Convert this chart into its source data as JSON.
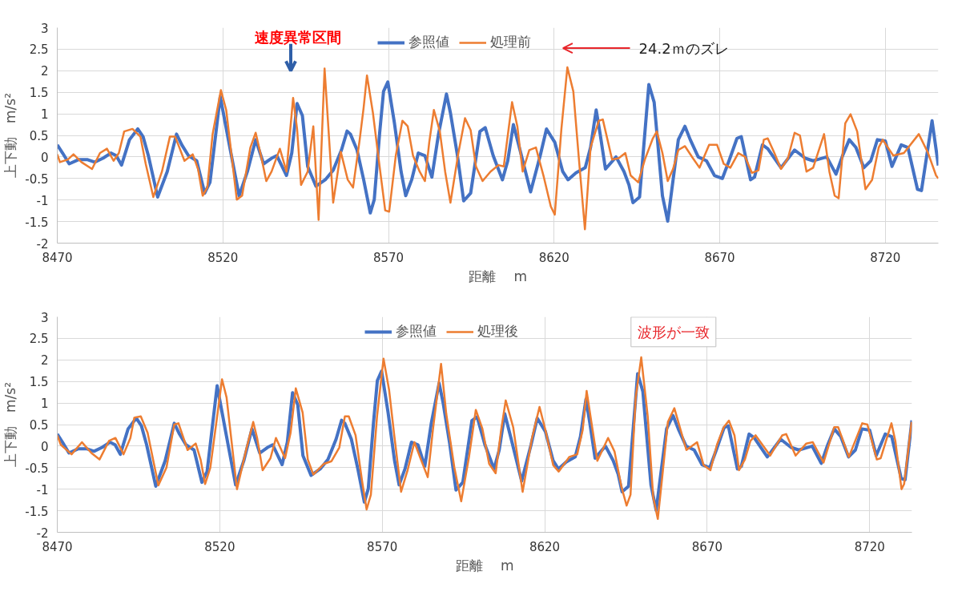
{
  "chart_data": [
    {
      "type": "line",
      "xlabel": "距離　 m",
      "ylabel": "上下動　m/s²",
      "legend": "top",
      "grid": true,
      "line_style": "solid",
      "xlim": [
        8470,
        8736
      ],
      "ylim": [
        -2,
        3
      ],
      "xticks": [
        8470,
        8520,
        8570,
        8620,
        8670,
        8720
      ],
      "yticks": [
        -2,
        -1.5,
        -1,
        -0.5,
        0,
        0.5,
        1,
        1.5,
        2,
        2.5,
        3
      ],
      "annotations": [
        "速度異常区間",
        "24.2ｍのズレ"
      ],
      "series": [
        {
          "name": "参照値",
          "color": "#4472c4",
          "x": [
            8470,
            8471.6,
            8473.6,
            8476.5,
            8479,
            8481.3,
            8483.8,
            8486.2,
            8487.8,
            8489.4,
            8491.8,
            8494.3,
            8495.9,
            8497.5,
            8500.3,
            8503.2,
            8506,
            8507.6,
            8509.6,
            8512.1,
            8514.5,
            8516.1,
            8519.2,
            8521.8,
            8524.9,
            8527.4,
            8529.9,
            8532.3,
            8534.7,
            8536.3,
            8539.2,
            8540.8,
            8542.4,
            8544,
            8545.6,
            8548.1,
            8550.9,
            8553.3,
            8555.8,
            8557.5,
            8558.5,
            8560.5,
            8562.5,
            8564.5,
            8565.7,
            8567.3,
            8568.5,
            8569.8,
            8571.8,
            8573.8,
            8575.2,
            8577,
            8579,
            8581,
            8583.1,
            8585.1,
            8587.5,
            8588.7,
            8590.7,
            8592.7,
            8594.8,
            8597.6,
            8599.2,
            8601.6,
            8604.4,
            8606,
            8607.7,
            8609.7,
            8612.9,
            8615.8,
            8617.7,
            8620.2,
            8622.6,
            8624.2,
            8626.6,
            8629.4,
            8631,
            8632.7,
            8633.9,
            8635.5,
            8638.7,
            8641.1,
            8642.6,
            8643.8,
            8645.8,
            8648.6,
            8650.2,
            8652.7,
            8654.3,
            8655.5,
            8657.5,
            8659.5,
            8661.1,
            8663.5,
            8666,
            8668.4,
            8670.8,
            8672.8,
            8675.2,
            8676.5,
            8679.3,
            8680.5,
            8682.9,
            8684.5,
            8688.5,
            8692.6,
            8695.8,
            8698.2,
            8702.3,
            8705.1,
            8707.1,
            8709.1,
            8711.1,
            8713.5,
            8715.6,
            8717.6,
            8720,
            8722,
            8724.8,
            8726.8,
            8729.7,
            8730.9,
            8734.1,
            8736
          ],
          "values": [
            0.28,
            0.09,
            -0.16,
            -0.06,
            -0.06,
            -0.12,
            -0.03,
            0.09,
            0.03,
            -0.19,
            0.4,
            0.65,
            0.47,
            0.03,
            -0.93,
            -0.34,
            0.53,
            0.28,
            0.03,
            -0.09,
            -0.84,
            -0.59,
            1.4,
            0.34,
            -0.9,
            -0.34,
            0.4,
            -0.16,
            -0.03,
            0.03,
            -0.43,
            0.09,
            1.24,
            0.96,
            -0.22,
            -0.68,
            -0.53,
            -0.31,
            0.16,
            0.6,
            0.53,
            0.16,
            -0.53,
            -1.3,
            -0.99,
            0.53,
            1.52,
            1.74,
            0.78,
            -0.34,
            -0.9,
            -0.53,
            0.09,
            0.03,
            -0.47,
            0.53,
            1.46,
            1.02,
            0.09,
            -1.02,
            -0.84,
            0.59,
            0.68,
            0.03,
            -0.53,
            -0.09,
            0.75,
            0.16,
            -0.81,
            0.03,
            0.65,
            0.34,
            -0.34,
            -0.53,
            -0.37,
            -0.25,
            0.22,
            1.09,
            0.53,
            -0.28,
            0,
            -0.34,
            -0.65,
            -1.06,
            -0.93,
            1.68,
            1.27,
            -0.9,
            -1.49,
            -0.78,
            0.4,
            0.71,
            0.4,
            0,
            -0.09,
            -0.43,
            -0.5,
            -0.09,
            0.43,
            0.47,
            -0.53,
            -0.47,
            0.28,
            0.19,
            -0.25,
            0.16,
            -0.03,
            -0.09,
            0,
            -0.4,
            0.03,
            0.4,
            0.22,
            -0.25,
            -0.09,
            0.4,
            0.37,
            -0.22,
            0.28,
            0.22,
            -0.75,
            -0.78,
            0.84,
            -0.2
          ]
        },
        {
          "name": "処理前",
          "color": "#ed7d31",
          "x": [
            8470,
            8470.8,
            8473.2,
            8474.9,
            8477.3,
            8480.5,
            8482.9,
            8485,
            8487,
            8488.6,
            8490.2,
            8492.7,
            8495.1,
            8496.7,
            8499,
            8501.6,
            8504,
            8505.6,
            8508.4,
            8510.9,
            8512.5,
            8513.9,
            8515.3,
            8516.9,
            8519.4,
            8521,
            8524.2,
            8525.8,
            8528.3,
            8529.9,
            8531.5,
            8533.1,
            8534.7,
            8537.2,
            8539.2,
            8541.2,
            8542.4,
            8543.6,
            8545.6,
            8547.3,
            8548.9,
            8550.7,
            8553.3,
            8555.6,
            8557.7,
            8559.3,
            8561.3,
            8562.5,
            8563.5,
            8565.3,
            8566.9,
            8569,
            8570.2,
            8572.2,
            8574.2,
            8575.8,
            8577.4,
            8579.4,
            8581,
            8582.3,
            8583.7,
            8585.5,
            8587.1,
            8588.7,
            8591.1,
            8593.1,
            8594.8,
            8596.4,
            8598.4,
            8600.8,
            8603.2,
            8604.8,
            8607.3,
            8608.9,
            8610.5,
            8612.5,
            8614.5,
            8616.9,
            8619,
            8620.2,
            8622.2,
            8624,
            8625.8,
            8627.4,
            8629.3,
            8631,
            8633.5,
            8634.7,
            8637.5,
            8639.5,
            8641.5,
            8643.1,
            8645.4,
            8647.4,
            8649.8,
            8651,
            8652.7,
            8654.3,
            8655.9,
            8657.5,
            8659.5,
            8661.9,
            8663.9,
            8666.8,
            8669.2,
            8671.2,
            8673.2,
            8675.6,
            8677.7,
            8679.7,
            8681.7,
            8683.3,
            8684.5,
            8686.5,
            8688.5,
            8690.6,
            8692.6,
            8694.2,
            8696.2,
            8698.2,
            8701.5,
            8703.1,
            8704.7,
            8705.9,
            8707.9,
            8709.5,
            8711.5,
            8714,
            8716,
            8718,
            8719.2,
            8722.4,
            8725.6,
            8730.1,
            8732.9,
            8735.3,
            8736
          ],
          "values": [
            0.06,
            -0.12,
            -0.06,
            0.06,
            -0.12,
            -0.28,
            0.09,
            0.19,
            -0.09,
            0.09,
            0.59,
            0.65,
            0.47,
            -0.16,
            -0.93,
            -0.34,
            0.47,
            0.47,
            -0.09,
            0.06,
            -0.28,
            -0.9,
            -0.71,
            0.53,
            1.55,
            1.09,
            -0.99,
            -0.9,
            0.22,
            0.56,
            0.03,
            -0.56,
            -0.34,
            0.19,
            -0.34,
            1.37,
            0.65,
            -0.65,
            -0.34,
            0.71,
            -1.46,
            2.05,
            -1.06,
            0.12,
            -0.53,
            -0.71,
            0.4,
            1.15,
            1.89,
            1.02,
            0.03,
            -1.24,
            -1.27,
            0.03,
            0.84,
            0.71,
            0.03,
            -0.34,
            -0.56,
            0.34,
            1.09,
            0.59,
            -0.34,
            -1.06,
            0.09,
            0.9,
            0.62,
            -0.22,
            -0.56,
            -0.34,
            -0.19,
            -0.22,
            1.27,
            0.71,
            -0.34,
            0.16,
            0.22,
            -0.47,
            -1.15,
            -1.34,
            0.65,
            2.08,
            1.52,
            0.03,
            -1.68,
            0.22,
            0.84,
            0.87,
            -0.06,
            -0.03,
            0.09,
            -0.43,
            -0.59,
            -0.06,
            0.43,
            0.59,
            0.09,
            -0.56,
            -0.28,
            0.16,
            0.25,
            -0.03,
            -0.25,
            0.28,
            0.28,
            -0.16,
            -0.25,
            0.09,
            0,
            -0.37,
            -0.31,
            0.4,
            0.43,
            0.09,
            -0.28,
            -0.03,
            0.56,
            0.5,
            -0.34,
            -0.25,
            0.53,
            -0.34,
            -0.9,
            -0.96,
            0.78,
            0.99,
            0.59,
            -0.75,
            -0.53,
            0.22,
            0.4,
            0.03,
            0.09,
            0.53,
            0.09,
            -0.43,
            -0.5
          ]
        }
      ]
    },
    {
      "type": "line",
      "xlabel": "距離　 m",
      "ylabel": "上下動　m/s²",
      "legend": "top",
      "grid": true,
      "line_style": "solid",
      "xlim": [
        8470,
        8733
      ],
      "ylim": [
        -2,
        3
      ],
      "xticks": [
        8470,
        8520,
        8570,
        8620,
        8670,
        8720
      ],
      "yticks": [
        -2,
        -1.5,
        -1,
        -0.5,
        0,
        0.5,
        1,
        1.5,
        2,
        2.5,
        3
      ],
      "annotations": [
        "波形が一致"
      ],
      "series": [
        {
          "name": "参照値",
          "color": "#4472c4",
          "x": [
            8470,
            8471.6,
            8473.6,
            8476.5,
            8479,
            8481.3,
            8483.8,
            8486.2,
            8487.8,
            8489.4,
            8491.8,
            8494.3,
            8495.9,
            8497.5,
            8500.3,
            8503.2,
            8506,
            8507.6,
            8509.6,
            8512.1,
            8514.5,
            8516.1,
            8519.2,
            8521.8,
            8524.9,
            8527.4,
            8529.9,
            8532.3,
            8534.7,
            8536.3,
            8539.2,
            8540.8,
            8542.4,
            8544,
            8545.6,
            8548.1,
            8550.9,
            8553.3,
            8555.8,
            8557.5,
            8558.5,
            8560.5,
            8562.5,
            8564.5,
            8565.7,
            8567.3,
            8568.5,
            8569.8,
            8571.8,
            8573.8,
            8575.2,
            8577,
            8579,
            8581,
            8583.1,
            8585.1,
            8587.5,
            8588.7,
            8590.7,
            8592.7,
            8594.8,
            8597.6,
            8599.2,
            8601.6,
            8604.4,
            8606,
            8607.7,
            8609.7,
            8612.9,
            8615.8,
            8617.7,
            8620.2,
            8622.6,
            8624.2,
            8626.6,
            8629.4,
            8631,
            8632.7,
            8633.9,
            8635.5,
            8638.7,
            8641.1,
            8642.6,
            8643.8,
            8645.8,
            8648.6,
            8650.2,
            8652.7,
            8654.3,
            8655.5,
            8657.5,
            8659.5,
            8661.1,
            8663.5,
            8666,
            8668.4,
            8670.8,
            8672.8,
            8675.2,
            8676.5,
            8679.3,
            8680.5,
            8682.9,
            8684.5,
            8688.5,
            8692.6,
            8695.8,
            8698.2,
            8702.3,
            8705.1,
            8707.1,
            8709.1,
            8711.1,
            8713.5,
            8715.6,
            8717.6,
            8720,
            8722,
            8724.8,
            8726.8,
            8729.7,
            8730.9,
            8733
          ],
          "values": [
            0.28,
            0.09,
            -0.16,
            -0.06,
            -0.06,
            -0.12,
            -0.03,
            0.09,
            0.03,
            -0.19,
            0.4,
            0.65,
            0.47,
            0.03,
            -0.93,
            -0.34,
            0.53,
            0.28,
            0.03,
            -0.09,
            -0.84,
            -0.59,
            1.4,
            0.34,
            -0.9,
            -0.34,
            0.4,
            -0.16,
            -0.03,
            0.03,
            -0.43,
            0.09,
            1.24,
            0.96,
            -0.22,
            -0.68,
            -0.53,
            -0.31,
            0.16,
            0.6,
            0.53,
            0.16,
            -0.53,
            -1.3,
            -0.99,
            0.53,
            1.52,
            1.74,
            0.78,
            -0.34,
            -0.9,
            -0.53,
            0.09,
            0.03,
            -0.47,
            0.53,
            1.46,
            1.02,
            0.09,
            -1.02,
            -0.84,
            0.59,
            0.68,
            0.03,
            -0.53,
            -0.09,
            0.75,
            0.16,
            -0.81,
            0.03,
            0.65,
            0.34,
            -0.34,
            -0.53,
            -0.37,
            -0.25,
            0.22,
            1.09,
            0.53,
            -0.28,
            0,
            -0.34,
            -0.65,
            -1.06,
            -0.93,
            1.68,
            1.27,
            -0.9,
            -1.49,
            -0.78,
            0.4,
            0.71,
            0.4,
            0,
            -0.09,
            -0.43,
            -0.5,
            -0.09,
            0.43,
            0.47,
            -0.53,
            -0.47,
            0.28,
            0.19,
            -0.25,
            0.16,
            -0.03,
            -0.09,
            0,
            -0.4,
            0.03,
            0.4,
            0.22,
            -0.25,
            -0.09,
            0.4,
            0.37,
            -0.22,
            0.28,
            0.22,
            -0.75,
            -0.78,
            0.6
          ]
        },
        {
          "name": "処理後",
          "color": "#ed7d31",
          "x": [
            8470,
            8471.1,
            8474.4,
            8477.6,
            8480.5,
            8483,
            8485.9,
            8487.9,
            8490.4,
            8492.5,
            8493.7,
            8495.7,
            8497.8,
            8501.1,
            8503.6,
            8506,
            8507.3,
            8510.1,
            8512.6,
            8514.1,
            8515.5,
            8517.1,
            8519.2,
            8520.7,
            8522.1,
            8525.3,
            8528.2,
            8530.3,
            8531.5,
            8533.2,
            8535.6,
            8537.3,
            8540.1,
            8541.8,
            8543.4,
            8545.5,
            8547.1,
            8548.8,
            8552.1,
            8554.4,
            8556.8,
            8558.5,
            8559.7,
            8561.8,
            8563.8,
            8565.2,
            8566.5,
            8568.4,
            8570.4,
            8572.1,
            8573.7,
            8575.8,
            8577.8,
            8579.9,
            8581.9,
            8584,
            8585.6,
            8588.1,
            8589.7,
            8592.2,
            8594.3,
            8596.7,
            8598.8,
            8600.8,
            8602.9,
            8604.9,
            8606.6,
            8608,
            8610.3,
            8613.2,
            8616.1,
            8618.4,
            8620.2,
            8622.6,
            8624.3,
            8627.6,
            8630,
            8631.7,
            8632.9,
            8634.6,
            8636.2,
            8639.5,
            8641.5,
            8643.6,
            8645.2,
            8646.4,
            8648,
            8649.7,
            8651.7,
            8653.4,
            8654.8,
            8656.2,
            8657.9,
            8659.9,
            8663.6,
            8666.9,
            8668.9,
            8671,
            8673,
            8675.1,
            8676.7,
            8678.4,
            8679.8,
            8681.6,
            8683.3,
            8684.9,
            8689.4,
            8693.1,
            8694.3,
            8697.2,
            8700.5,
            8702.5,
            8705.8,
            8709.1,
            8710.3,
            8713.6,
            8717.7,
            8719.3,
            8722.2,
            8723.4,
            8726.7,
            8727.9,
            8729.8,
            8730.6,
            8732.9
          ],
          "values": [
            0.25,
            0.03,
            -0.19,
            0.09,
            -0.16,
            -0.31,
            0.12,
            0.19,
            -0.19,
            0.19,
            0.66,
            0.69,
            0.31,
            -0.91,
            -0.5,
            0.5,
            0.53,
            -0.09,
            0.06,
            -0.31,
            -0.88,
            -0.5,
            0.69,
            1.55,
            1.13,
            -1.0,
            -0.06,
            0.56,
            0.19,
            -0.56,
            -0.28,
            0.19,
            -0.28,
            0.31,
            1.34,
            0.78,
            -0.31,
            -0.66,
            -0.41,
            -0.35,
            -0.03,
            0.69,
            0.69,
            0.25,
            -0.81,
            -1.47,
            -1.13,
            0.69,
            2.03,
            1.31,
            0.25,
            -1.06,
            -0.56,
            0.09,
            -0.31,
            -0.72,
            0.38,
            1.91,
            0.75,
            -0.5,
            -1.28,
            -0.25,
            0.84,
            0.41,
            -0.41,
            -0.63,
            0.38,
            1.06,
            0.44,
            -1.06,
            0.19,
            0.91,
            0.38,
            -0.44,
            -0.59,
            -0.25,
            -0.19,
            0.38,
            1.28,
            0.44,
            -0.34,
            0.19,
            -0.13,
            -0.94,
            -1.38,
            -1.13,
            1.13,
            2.06,
            0.69,
            -1.19,
            -1.69,
            -0.69,
            0.56,
            0.88,
            -0.09,
            0.09,
            -0.44,
            -0.56,
            0.03,
            0.44,
            0.59,
            0.25,
            -0.56,
            -0.31,
            0.12,
            0.25,
            -0.22,
            0.25,
            0.28,
            -0.22,
            0.06,
            0.09,
            -0.38,
            0.44,
            0.44,
            -0.25,
            0.53,
            0.5,
            -0.31,
            -0.28,
            0.53,
            0.12,
            -1.0,
            -0.88,
            0.56
          ]
        }
      ]
    }
  ]
}
